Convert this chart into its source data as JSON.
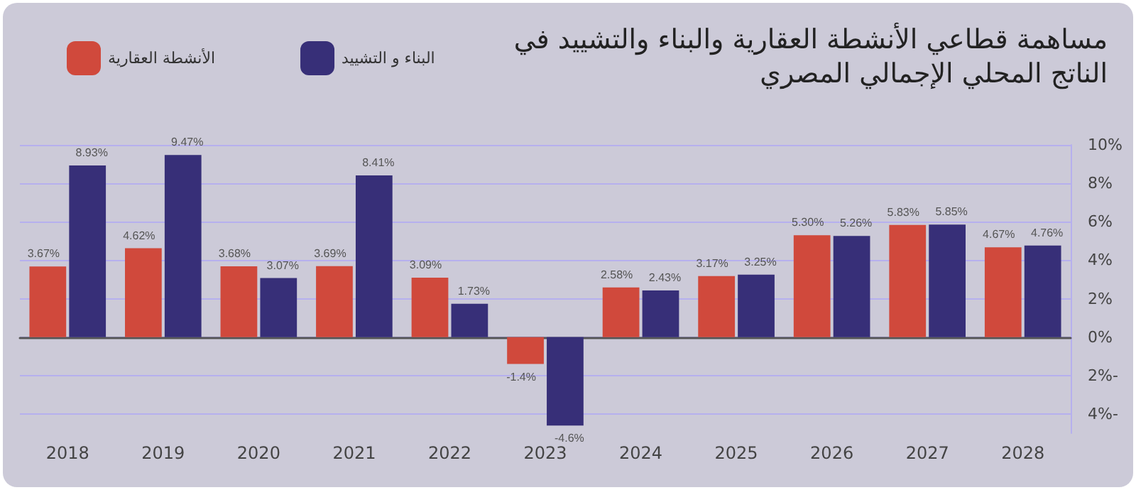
{
  "chart_data": {
    "type": "bar",
    "title": "مساهمة قطاعي الأنشطة العقارية والبناء والتشييد في الناتج المحلي الإجمالي المصري",
    "categories": [
      "2018",
      "2019",
      "2020",
      "2021",
      "2022",
      "2023",
      "2024",
      "2025",
      "2026",
      "2027",
      "2028"
    ],
    "series": [
      {
        "name": "الأنشطة العقارية",
        "color": "#d0493c",
        "values": [
          3.67,
          4.62,
          3.68,
          3.69,
          3.09,
          -1.4,
          2.58,
          3.17,
          5.3,
          5.83,
          4.67
        ],
        "value_labels": [
          "3.67%",
          "4.62%",
          "3.68%",
          "3.69%",
          "3.09%",
          "-1.4%",
          "2.58%",
          "3.17%",
          "5.30%",
          "5.83%",
          "4.67%"
        ]
      },
      {
        "name": "البناء و التشييد",
        "color": "#372f78",
        "values": [
          8.93,
          9.47,
          3.07,
          8.41,
          1.73,
          -4.6,
          2.43,
          3.25,
          5.26,
          5.85,
          4.76
        ],
        "value_labels": [
          "8.93%",
          "9.47%",
          "3.07%",
          "8.41%",
          "1.73%",
          "-4.6%",
          "2.43%",
          "3.25%",
          "5.26%",
          "5.85%",
          "4.76%"
        ]
      }
    ],
    "ylim": [
      -5,
      10
    ],
    "yticks": [
      {
        "value": -4,
        "label": "4%-"
      },
      {
        "value": -2,
        "label": "2%-"
      },
      {
        "value": 0,
        "label": "0%"
      },
      {
        "value": 2,
        "label": "2%"
      },
      {
        "value": 4,
        "label": "4%"
      },
      {
        "value": 6,
        "label": "6%"
      },
      {
        "value": 8,
        "label": "8%"
      },
      {
        "value": 10,
        "label": "10%"
      }
    ],
    "grid": "y",
    "legend": "top left"
  }
}
